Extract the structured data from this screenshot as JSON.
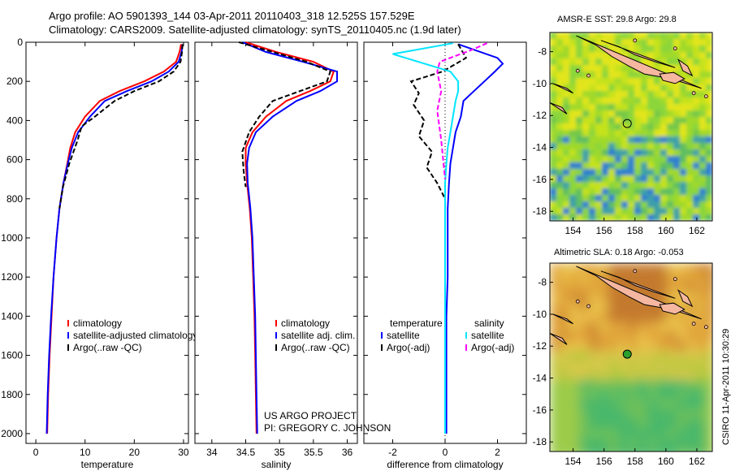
{
  "header": {
    "line1": "Argo profile: AO 5901393_144 03-Apr-2011 20110403_318 12.525S 157.529E",
    "line2": "Climatology: CARS2009. Satellite-adjusted climatology: synTS_20110405.nc (1.9d later)"
  },
  "credit": {
    "line1": "US ARGO PROJECT",
    "line2": "PI: GREGORY C. JOHNSON"
  },
  "stamp": "CSIRO 11-Apr-2011 10:30:29",
  "colors": {
    "climatology": "#ff0000",
    "satellite": "#0000ff",
    "argo": "#000000",
    "sat_salinity": "#00e5ff",
    "argo_salinity": "#ff00ff",
    "land": "#f5b7a0"
  },
  "chart_data": [
    {
      "type": "line",
      "id": "temperature",
      "xlabel": "temperature",
      "ylabel": "",
      "xlim": [
        -2,
        31
      ],
      "ylim": [
        2050,
        0
      ],
      "xticks": [
        0,
        10,
        20,
        30
      ],
      "yticks": [
        0,
        200,
        400,
        600,
        800,
        1000,
        1200,
        1400,
        1600,
        1800,
        2000
      ],
      "legend": [
        "climatology",
        "satellite-adjusted climatology",
        "Argo(..raw -QC)"
      ],
      "series": [
        {
          "name": "climatology",
          "color": "#ff0000",
          "x": [
            29.5,
            29.2,
            28.5,
            26,
            22,
            17,
            13,
            10,
            8,
            7,
            6.4,
            5.6,
            4.8,
            4.2,
            3.6,
            3.2,
            2.8,
            2.5,
            2.3
          ],
          "y": [
            10,
            50,
            100,
            150,
            200,
            250,
            300,
            380,
            460,
            540,
            620,
            720,
            850,
            1000,
            1200,
            1400,
            1600,
            1800,
            2000
          ]
        },
        {
          "name": "satellite-adjusted climatology",
          "color": "#0000ff",
          "x": [
            29.8,
            29.6,
            29,
            27,
            23.5,
            18.5,
            14,
            11,
            8.6,
            7.3,
            6.5,
            5.6,
            4.8,
            4.2,
            3.6,
            3.1,
            2.7,
            2.4,
            2.2
          ],
          "y": [
            10,
            50,
            100,
            150,
            200,
            250,
            300,
            380,
            460,
            540,
            620,
            720,
            850,
            1000,
            1200,
            1400,
            1600,
            1800,
            2000
          ]
        },
        {
          "name": "Argo(..raw -QC)",
          "color": "#000000",
          "dash": "6,3",
          "x": [
            29.8,
            29.7,
            29.4,
            28,
            25,
            20,
            16,
            12,
            9.3,
            8.5,
            6.8,
            5.5,
            4.8
          ],
          "y": [
            10,
            50,
            100,
            150,
            200,
            250,
            300,
            380,
            430,
            500,
            620,
            740,
            850
          ]
        }
      ]
    },
    {
      "type": "line",
      "id": "salinity",
      "xlabel": "salinity",
      "ylabel": "",
      "xlim": [
        33.75,
        36.15
      ],
      "ylim": [
        2050,
        0
      ],
      "xticks": [
        34,
        34.5,
        35,
        35.5,
        36
      ],
      "legend": [
        "climatology",
        "satellite adj. clim.",
        "Argo(..raw -QC)"
      ],
      "series": [
        {
          "name": "climatology",
          "color": "#ff0000",
          "x": [
            34.5,
            34.95,
            35.5,
            35.8,
            35.75,
            35.45,
            35.1,
            34.8,
            34.6,
            34.5,
            34.5,
            34.52,
            34.56,
            34.59,
            34.61,
            34.63,
            34.64,
            34.65,
            34.66
          ],
          "y": [
            0,
            50,
            100,
            150,
            200,
            250,
            300,
            380,
            460,
            540,
            620,
            720,
            850,
            1000,
            1200,
            1400,
            1600,
            1800,
            2000
          ]
        },
        {
          "name": "satellite adj. clim.",
          "color": "#0000ff",
          "x": [
            34.45,
            34.8,
            35.35,
            35.85,
            35.85,
            35.6,
            35.25,
            34.9,
            34.65,
            34.55,
            34.52,
            34.53,
            34.57,
            34.6,
            34.62,
            34.64,
            34.65,
            34.66,
            34.67
          ],
          "y": [
            0,
            50,
            100,
            150,
            200,
            250,
            300,
            380,
            460,
            540,
            620,
            720,
            850,
            1000,
            1200,
            1400,
            1600,
            1800,
            2000
          ]
        },
        {
          "name": "Argo(..raw -QC)",
          "color": "#000000",
          "dash": "6,3",
          "x": [
            34.4,
            34.9,
            35.4,
            35.75,
            35.7,
            35.3,
            34.9,
            34.7,
            34.55,
            34.45,
            34.47,
            34.5
          ],
          "y": [
            0,
            50,
            100,
            150,
            200,
            250,
            300,
            380,
            460,
            560,
            660,
            740
          ]
        }
      ]
    },
    {
      "type": "line",
      "id": "difference",
      "xlabel": "difference from climatology",
      "ylabel": "",
      "xlim": [
        -3.1,
        3.1
      ],
      "ylim": [
        2050,
        0
      ],
      "xticks": [
        -2,
        0,
        2
      ],
      "legend": [
        "temperature",
        "satellite",
        "Argo(-adj)",
        "salinity",
        "satellite",
        "Argo(-adj)"
      ],
      "series": [
        {
          "name": "satellite",
          "color": "#0000ff",
          "x": [
            0.5,
            2.0,
            2.2,
            1.9,
            1.5,
            1.1,
            0.7,
            0.6,
            0.4,
            0.3,
            0.2,
            0.15,
            0.1,
            0.1,
            0.1,
            0.05,
            0.05,
            0.05,
            0.05
          ],
          "y": [
            10,
            80,
            110,
            150,
            200,
            250,
            300,
            380,
            460,
            540,
            620,
            720,
            850,
            1000,
            1200,
            1400,
            1600,
            1800,
            2000
          ]
        },
        {
          "name": "Argo(-adj)",
          "color": "#000000",
          "dash": "6,3",
          "x": [
            0.5,
            0.8,
            -0.1,
            -1.3,
            -1.0,
            -1.2,
            -0.8,
            -1.0,
            -0.5,
            -0.7,
            -0.3,
            0
          ],
          "y": [
            10,
            80,
            150,
            200,
            260,
            320,
            400,
            480,
            560,
            640,
            720,
            800
          ]
        },
        {
          "name": "satellite",
          "color": "#00e5ff",
          "x": [
            0.3,
            -2.0,
            0.2,
            0.5,
            0.5,
            0.4,
            0.3,
            0.2,
            0.1,
            0.05,
            0,
            0,
            0,
            0,
            0,
            0,
            0,
            0
          ],
          "y": [
            5,
            60,
            150,
            200,
            250,
            300,
            380,
            460,
            540,
            620,
            720,
            850,
            1000,
            1200,
            1400,
            1600,
            1800,
            2000
          ]
        },
        {
          "name": "Argo(-adj)",
          "color": "#ff00ff",
          "dash": "6,3",
          "x": [
            1.6,
            1.0,
            -0.2,
            -0.3,
            -0.15,
            -0.3,
            -0.15,
            0
          ],
          "y": [
            5,
            40,
            100,
            150,
            250,
            350,
            500,
            700
          ]
        }
      ]
    },
    {
      "type": "heatmap",
      "id": "sst_map",
      "title": "AMSR-E SST: 29.8 Argo: 29.8",
      "xlim": [
        152.5,
        163
      ],
      "ylim": [
        -18.6,
        -6.8
      ],
      "xticks": [
        154,
        156,
        158,
        160,
        162
      ],
      "yticks": [
        -8,
        -10,
        -12,
        -14,
        -16,
        -18
      ],
      "marker": {
        "lon": 157.5,
        "lat": -12.5,
        "fill": "none"
      }
    },
    {
      "type": "heatmap",
      "id": "sla_map",
      "title": "Altimetric SLA: 0.18 Argo: -0.053",
      "xlim": [
        152.5,
        163
      ],
      "ylim": [
        -18.6,
        -6.8
      ],
      "xticks": [
        154,
        156,
        158,
        160,
        162
      ],
      "yticks": [
        -8,
        -10,
        -12,
        -14,
        -16,
        -18
      ],
      "marker": {
        "lon": 157.5,
        "lat": -12.5,
        "fill": "#2ca02c"
      }
    }
  ]
}
